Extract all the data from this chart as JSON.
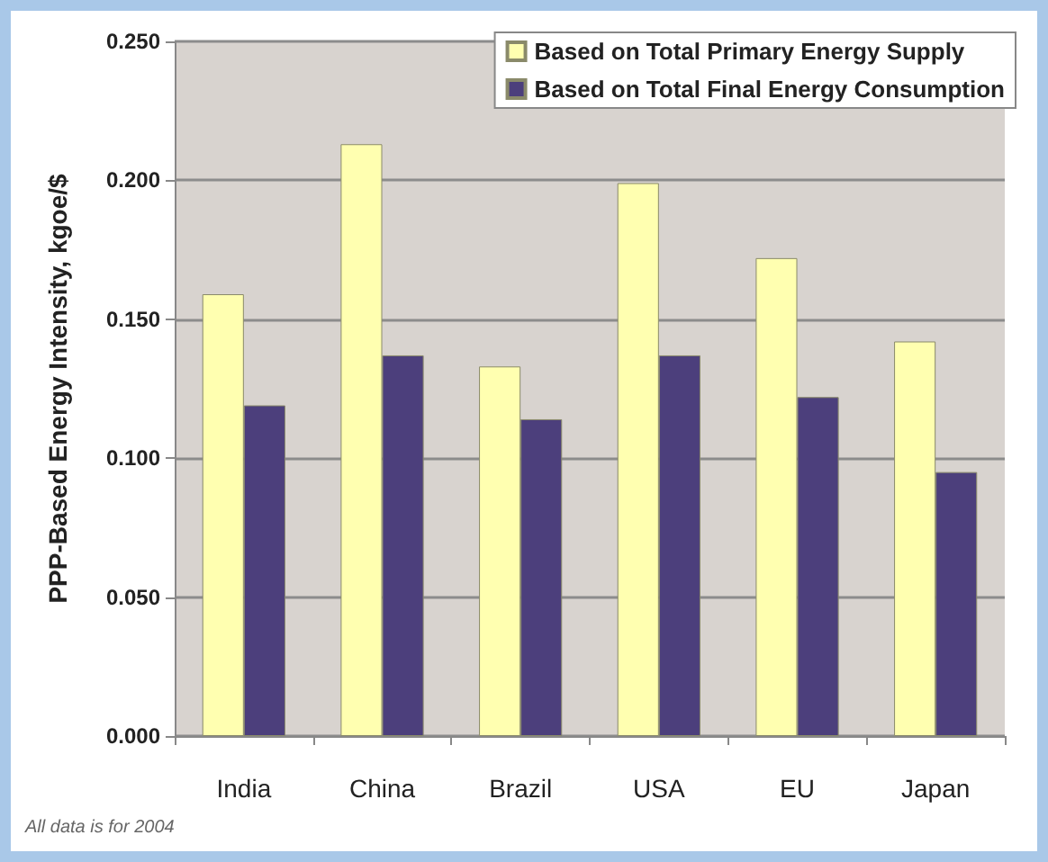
{
  "chart_data": {
    "type": "bar",
    "ylabel": "PPP-Based Energy Intensity, kgoe/$",
    "categories": [
      "India",
      "China",
      "Brazil",
      "USA",
      "EU",
      "Japan"
    ],
    "series": [
      {
        "name": "Based on Total Primary Energy Supply",
        "color": "#ffffb0",
        "values": [
          0.159,
          0.213,
          0.133,
          0.199,
          0.172,
          0.142
        ]
      },
      {
        "name": "Based on Total Final Energy Consumption",
        "color": "#4c3f7c",
        "values": [
          0.119,
          0.137,
          0.114,
          0.137,
          0.122,
          0.095
        ]
      }
    ],
    "ylim": [
      0,
      0.25
    ],
    "yticks": [
      {
        "value": 0,
        "label": "0.000"
      },
      {
        "value": 0.05,
        "label": "0.050"
      },
      {
        "value": 0.1,
        "label": "0.100"
      },
      {
        "value": 0.15,
        "label": "0.150"
      },
      {
        "value": 0.2,
        "label": "0.200"
      },
      {
        "value": 0.25,
        "label": "0.250"
      }
    ],
    "grid": "y",
    "legend": "top right",
    "annotations": [
      "All data is for 2004"
    ]
  }
}
